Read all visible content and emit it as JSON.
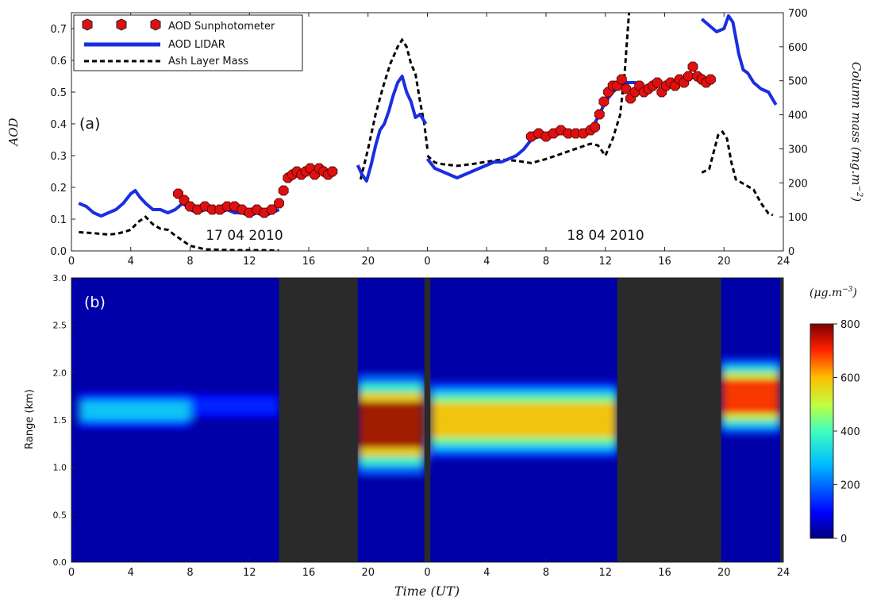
{
  "chart_data": [
    {
      "panel": "a",
      "type": "line",
      "title": "",
      "panel_label": "(a)",
      "xlabel": "",
      "ylabel": "AOD",
      "y2label": "Column mass (mg.m^-2)",
      "xlim": [
        0,
        48
      ],
      "ylim": [
        0,
        0.75
      ],
      "y2lim": [
        0,
        700
      ],
      "xtick_labels": [
        "0",
        "4",
        "8",
        "12",
        "16",
        "20",
        "0",
        "4",
        "8",
        "12",
        "16",
        "20",
        "24"
      ],
      "ytick_labels": [
        "0.0",
        "0.1",
        "0.2",
        "0.3",
        "0.4",
        "0.5",
        "0.6",
        "0.7"
      ],
      "y2tick_labels": [
        "0",
        "100",
        "200",
        "300",
        "400",
        "500",
        "600",
        "700"
      ],
      "date_labels": [
        {
          "text": "17 04 2010",
          "x": 11
        },
        {
          "text": "18 04 2010",
          "x": 40
        }
      ],
      "legend": {
        "position": "top-left",
        "entries": [
          "AOD Sunphotometer",
          "AOD LIDAR",
          "Ash Layer Mass"
        ]
      },
      "grid": false,
      "series": [
        {
          "name": "AOD Sunphotometer",
          "style": "markers",
          "color": "#e01010",
          "x": [
            7.2,
            7.6,
            8.0,
            8.5,
            9.0,
            9.5,
            10.0,
            10.5,
            11.0,
            11.5,
            12.0,
            12.5,
            13.0,
            13.5,
            14.0,
            14.3,
            14.6,
            14.9,
            15.2,
            15.5,
            15.8,
            16.1,
            16.4,
            16.7,
            17.0,
            17.3,
            17.6,
            31.0,
            31.5,
            32.0,
            32.5,
            33.0,
            33.5,
            34.0,
            34.5,
            35.0,
            35.3,
            35.6,
            35.9,
            36.2,
            36.5,
            36.8,
            37.1,
            37.4,
            37.7,
            38.0,
            38.3,
            38.6,
            38.9,
            39.2,
            39.5,
            39.8,
            40.1,
            40.4,
            40.7,
            41.0,
            41.3,
            41.6,
            41.9,
            42.2,
            42.5,
            42.8,
            43.1
          ],
          "y": [
            0.18,
            0.16,
            0.14,
            0.13,
            0.14,
            0.13,
            0.13,
            0.14,
            0.14,
            0.13,
            0.12,
            0.13,
            0.12,
            0.13,
            0.15,
            0.19,
            0.23,
            0.24,
            0.25,
            0.24,
            0.25,
            0.26,
            0.24,
            0.26,
            0.25,
            0.24,
            0.25,
            0.36,
            0.37,
            0.36,
            0.37,
            0.38,
            0.37,
            0.37,
            0.37,
            0.38,
            0.39,
            0.43,
            0.47,
            0.5,
            0.52,
            0.52,
            0.54,
            0.51,
            0.48,
            0.5,
            0.52,
            0.5,
            0.51,
            0.52,
            0.53,
            0.5,
            0.52,
            0.53,
            0.52,
            0.54,
            0.53,
            0.55,
            0.58,
            0.55,
            0.54,
            0.53,
            0.54
          ]
        },
        {
          "name": "AOD LIDAR",
          "style": "solid",
          "color": "#1a2ee0",
          "segments": [
            {
              "x": [
                0.5,
                1.0,
                1.5,
                2.0,
                2.5,
                3.0,
                3.5,
                4.0,
                4.3,
                4.6,
                5.0,
                5.5,
                6.0,
                6.5,
                7.0,
                7.5,
                8.0,
                8.5,
                9.0,
                9.5,
                10.0,
                10.5,
                11.0,
                11.5,
                12.0,
                12.5,
                13.0,
                13.5,
                14.0
              ],
              "y": [
                0.15,
                0.14,
                0.12,
                0.11,
                0.12,
                0.13,
                0.15,
                0.18,
                0.19,
                0.17,
                0.15,
                0.13,
                0.13,
                0.12,
                0.13,
                0.15,
                0.13,
                0.12,
                0.13,
                0.13,
                0.12,
                0.13,
                0.12,
                0.12,
                0.11,
                0.12,
                0.11,
                0.12,
                0.13
              ]
            },
            {
              "x": [
                19.3,
                19.6,
                19.9,
                20.2,
                20.5,
                20.8,
                21.1,
                21.4,
                21.7,
                22.0,
                22.3,
                22.6,
                22.9,
                23.2,
                23.5,
                23.9
              ],
              "y": [
                0.27,
                0.24,
                0.22,
                0.27,
                0.33,
                0.38,
                0.4,
                0.44,
                0.49,
                0.53,
                0.55,
                0.5,
                0.47,
                0.42,
                0.43,
                0.4
              ]
            },
            {
              "x": [
                24.0,
                24.5,
                25.0,
                25.5,
                26.0,
                26.5,
                27.0,
                27.5,
                28.0,
                28.5,
                29.0,
                29.5,
                30.0,
                30.5,
                31.0,
                31.5,
                32.0,
                33.0,
                34.0,
                35.0,
                35.5,
                36.0,
                36.5,
                37.0,
                37.5,
                38.0,
                38.5
              ],
              "y": [
                0.29,
                0.26,
                0.25,
                0.24,
                0.23,
                0.24,
                0.25,
                0.26,
                0.27,
                0.28,
                0.28,
                0.29,
                0.3,
                0.32,
                0.35,
                0.36,
                0.36,
                0.37,
                0.37,
                0.38,
                0.42,
                0.47,
                0.5,
                0.52,
                0.53,
                0.53,
                0.52
              ]
            },
            {
              "x": [
                42.5,
                43.0,
                43.5,
                44.0,
                44.3,
                44.6,
                45.0,
                45.3,
                45.6,
                46.0,
                46.5,
                47.0,
                47.5
              ],
              "y": [
                0.73,
                0.71,
                0.69,
                0.7,
                0.74,
                0.72,
                0.62,
                0.57,
                0.56,
                0.53,
                0.51,
                0.5,
                0.46
              ]
            }
          ]
        },
        {
          "name": "Ash Layer Mass",
          "style": "dashed",
          "color": "#000000",
          "axis": "y2",
          "segments": [
            {
              "x": [
                0.5,
                1.5,
                2.5,
                3.0,
                3.5,
                4.0,
                4.5,
                5.0,
                5.5,
                6.0,
                6.5,
                7.0,
                7.5,
                8.0,
                8.5,
                9.0,
                10.0,
                11.0,
                12.0,
                13.0,
                14.0
              ],
              "y": [
                55,
                52,
                48,
                50,
                55,
                62,
                85,
                100,
                78,
                65,
                62,
                45,
                30,
                15,
                10,
                5,
                3,
                2,
                2,
                2,
                1
              ]
            },
            {
              "x": [
                19.5,
                20.0,
                20.5,
                21.0,
                21.5,
                22.0,
                22.3,
                22.6,
                22.9,
                23.2,
                23.5,
                23.8,
                24.0
              ],
              "y": [
                210,
                300,
                400,
                480,
                550,
                600,
                620,
                600,
                550,
                520,
                440,
                370,
                300
              ]
            },
            {
              "x": [
                24.0,
                24.5,
                25.0,
                26.0,
                27.0,
                28.0,
                29.0,
                30.0,
                31.0,
                32.0,
                33.0,
                34.0,
                35.0,
                35.5,
                36.0,
                36.5,
                37.0,
                37.3,
                37.6
              ],
              "y": [
                280,
                260,
                255,
                250,
                255,
                262,
                268,
                265,
                258,
                270,
                285,
                300,
                315,
                310,
                280,
                330,
                400,
                520,
                700
              ]
            },
            {
              "x": [
                42.5,
                43.0,
                43.3,
                43.6,
                43.9,
                44.2,
                44.5,
                44.8,
                45.2,
                45.6,
                46.0,
                46.5,
                47.0,
                47.3
              ],
              "y": [
                230,
                240,
                290,
                340,
                350,
                330,
                260,
                210,
                200,
                190,
                180,
                140,
                110,
                105
              ]
            }
          ]
        }
      ]
    },
    {
      "panel": "b",
      "type": "heatmap",
      "title": "",
      "panel_label": "(b)",
      "xlabel": "Time (UT)",
      "ylabel": "Range (km)",
      "xlim": [
        0,
        48
      ],
      "ylim": [
        0,
        3.0
      ],
      "xtick_labels": [
        "0",
        "4",
        "8",
        "12",
        "16",
        "20",
        "0",
        "4",
        "8",
        "12",
        "16",
        "20",
        "24"
      ],
      "ytick_labels": [
        "0.0",
        "0.5",
        "1.0",
        "1.5",
        "2.0",
        "2.5",
        "3.0"
      ],
      "colorbar": {
        "label": "(µg.m^-3)",
        "range": [
          0,
          800
        ],
        "tick_labels": [
          "0",
          "200",
          "400",
          "600",
          "800"
        ]
      },
      "no_data_intervals": [
        [
          14.0,
          19.3
        ],
        [
          23.8,
          24.2
        ],
        [
          36.8,
          43.8
        ],
        [
          47.8,
          48.0
        ]
      ],
      "ash_layers": [
        {
          "x_range": [
            0.5,
            8.0
          ],
          "center_km": 1.6,
          "thickness_km": 0.3,
          "peak_ugm3": 300
        },
        {
          "x_range": [
            8.0,
            14.0
          ],
          "center_km": 1.65,
          "thickness_km": 0.25,
          "peak_ugm3": 130
        },
        {
          "x_range": [
            19.3,
            23.8
          ],
          "center_km": 1.45,
          "thickness_km": 0.8,
          "peak_ugm3": 780
        },
        {
          "x_range": [
            24.2,
            36.8
          ],
          "center_km": 1.5,
          "thickness_km": 0.6,
          "peak_ugm3": 600
        },
        {
          "x_range": [
            43.8,
            47.8
          ],
          "center_km": 1.75,
          "thickness_km": 0.6,
          "peak_ugm3": 700
        }
      ]
    }
  ]
}
